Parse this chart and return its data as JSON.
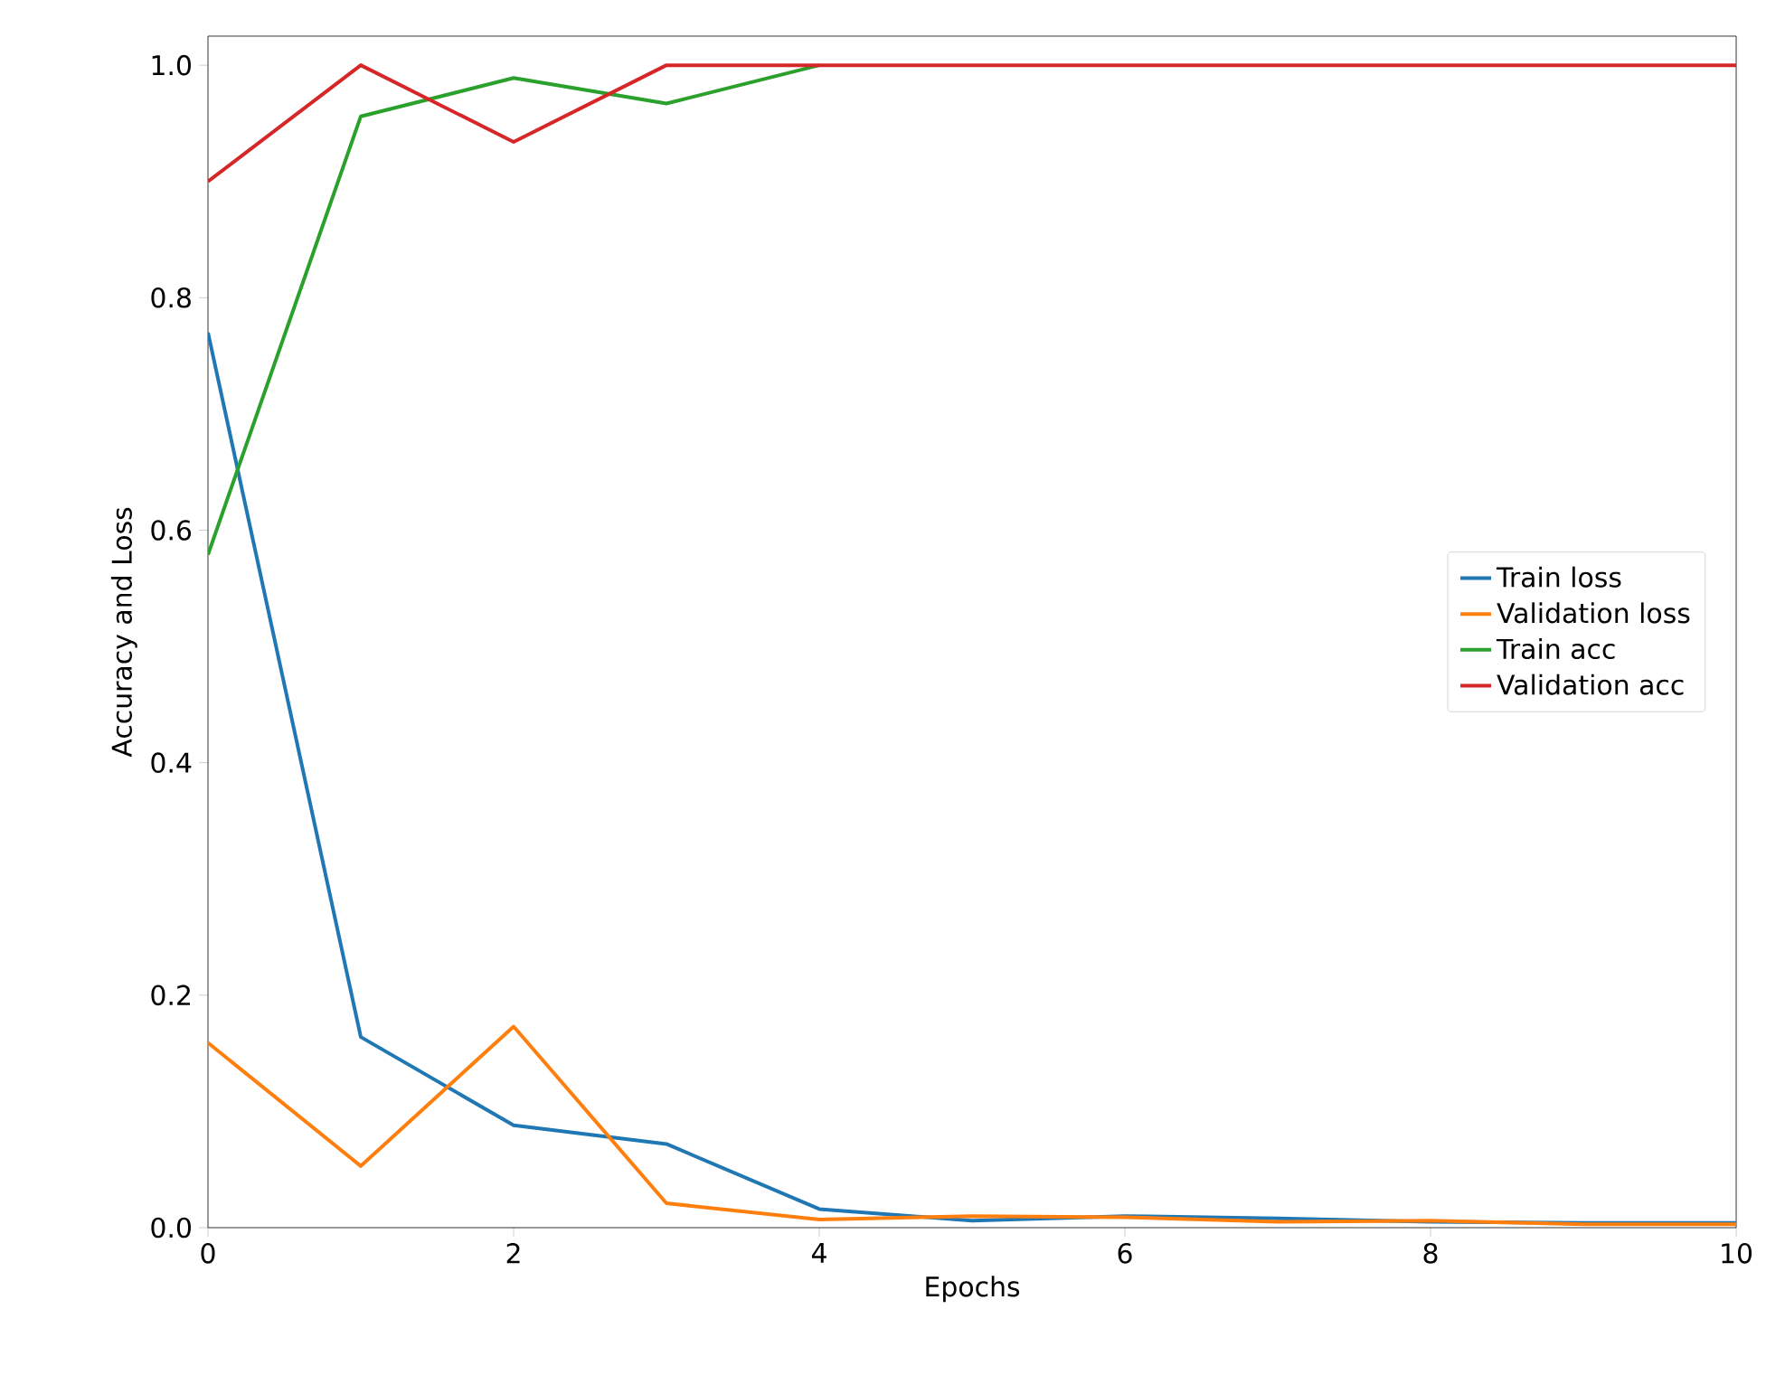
{
  "chart_data": {
    "type": "line",
    "xlabel": "Epochs",
    "ylabel": "Accuracy and Loss",
    "x": [
      0,
      1,
      2,
      3,
      4,
      5,
      6,
      7,
      8,
      9,
      10
    ],
    "series": [
      {
        "name": "Train loss",
        "color": "#1f77b4",
        "values": [
          0.77,
          0.164,
          0.088,
          0.072,
          0.016,
          0.006,
          0.01,
          0.008,
          0.005,
          0.004,
          0.004
        ]
      },
      {
        "name": "Validation loss",
        "color": "#ff7f0e",
        "values": [
          0.159,
          0.053,
          0.173,
          0.021,
          0.007,
          0.01,
          0.009,
          0.005,
          0.006,
          0.003,
          0.003
        ]
      },
      {
        "name": "Train acc",
        "color": "#2ca02c",
        "values": [
          0.579,
          0.956,
          0.989,
          0.967,
          1.0,
          null,
          null,
          null,
          null,
          null,
          null
        ]
      },
      {
        "name": "Validation acc",
        "color": "#d62728",
        "values": [
          0.9,
          1.0,
          0.934,
          1.0,
          1.0,
          1.0,
          1.0,
          1.0,
          1.0,
          1.0,
          1.0
        ]
      }
    ],
    "xlim": [
      0,
      10
    ],
    "ylim": [
      0,
      1.025
    ],
    "xticks": [
      0,
      2,
      4,
      6,
      8,
      10
    ],
    "yticks": [
      {
        "value": 0,
        "label": "0.0"
      },
      {
        "value": 0.2,
        "label": "0.2"
      },
      {
        "value": 0.4,
        "label": "0.4"
      },
      {
        "value": 0.6,
        "label": "0.6"
      },
      {
        "value": 0.8,
        "label": "0.8"
      },
      {
        "value": 1.0,
        "label": "1.0"
      }
    ],
    "legend": "right",
    "grid": false,
    "marker": "none",
    "line_style": "solid"
  }
}
